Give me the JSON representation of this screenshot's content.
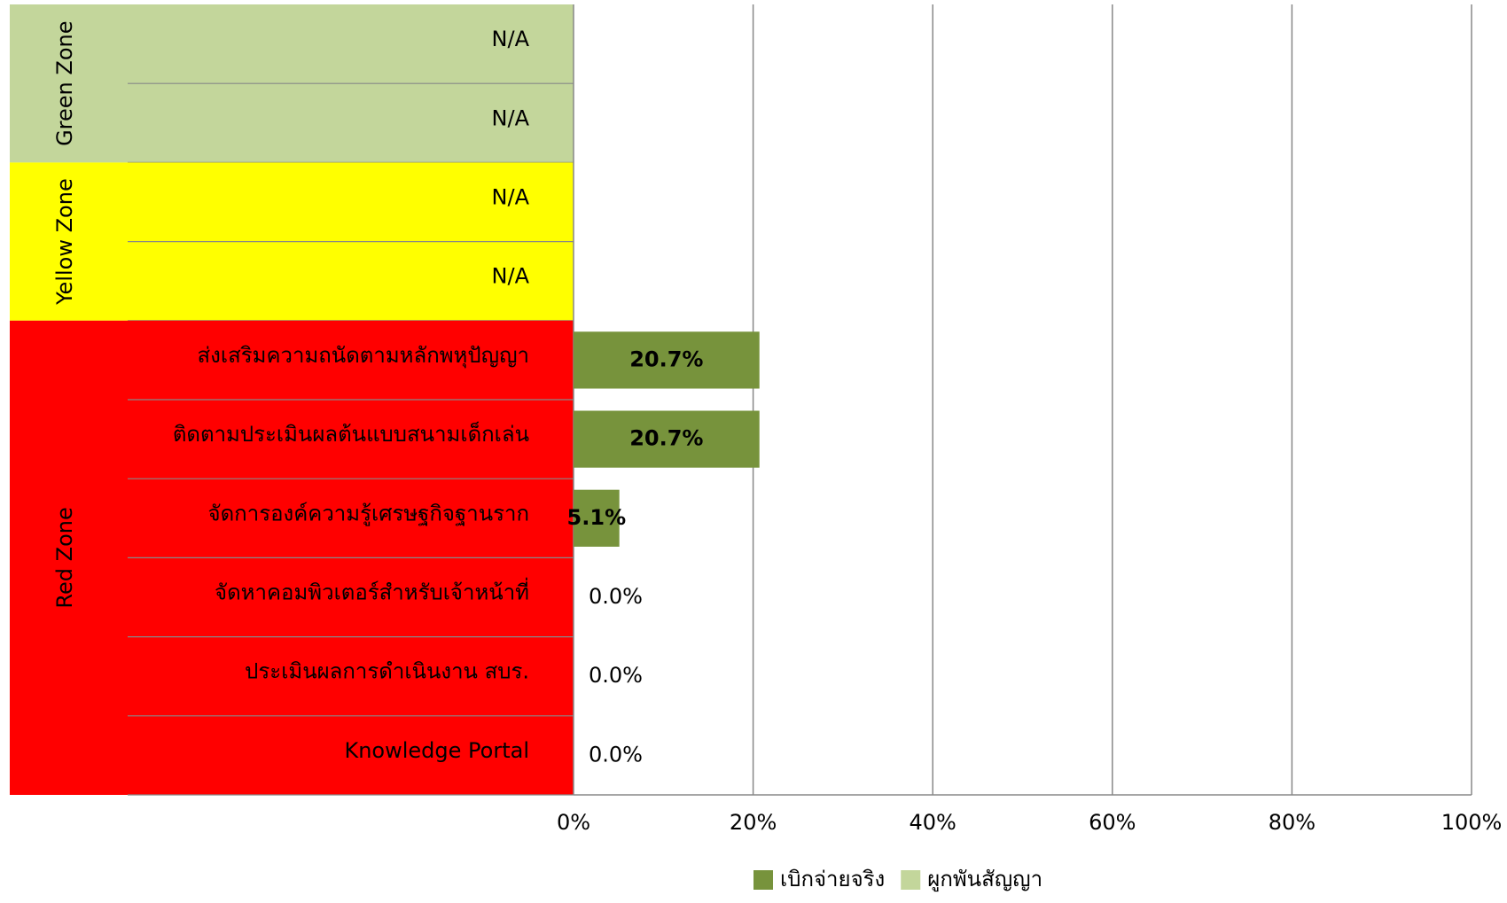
{
  "chart_data": {
    "type": "bar",
    "orientation": "horizontal",
    "groups": [
      {
        "label": "Green Zone",
        "color": "#c3d69b",
        "categories": [
          "N/A",
          "N/A"
        ]
      },
      {
        "label": "Yellow Zone",
        "color": "#ffff00",
        "categories": [
          "N/A",
          "N/A"
        ]
      },
      {
        "label": "Red Zone",
        "color": "#ff0000",
        "categories": [
          "ส่งเสริมความถนัดตามหลักพหุปัญญา",
          "ติดตามประเมินผลต้นแบบสนามเด็กเล่น",
          "จัดการองค์ความรู้เศรษฐกิจฐานราก",
          "จัดหาคอมพิวเตอร์สำหรับเจ้าหน้าที่",
          "ประเมินผลการดำเนินงาน สบร.",
          "Knowledge Portal"
        ]
      }
    ],
    "series": [
      {
        "name": "เบิกจ่ายจริง",
        "color": "#77933c",
        "values": [
          null,
          null,
          null,
          null,
          20.7,
          20.7,
          5.1,
          0,
          0,
          0
        ],
        "value_labels": [
          null,
          null,
          null,
          null,
          "20.7%",
          "20.7%",
          "5.1%",
          "0.0%",
          "0.0%",
          "0.0%"
        ]
      },
      {
        "name": "ผูกพันสัญญา",
        "color": "#c3d69b",
        "values": [
          null,
          null,
          null,
          null,
          null,
          null,
          null,
          null,
          null,
          null
        ]
      }
    ],
    "xlim": [
      0,
      100
    ],
    "xticks": [
      {
        "value": 0,
        "label": "0%"
      },
      {
        "value": 20,
        "label": "20%"
      },
      {
        "value": 40,
        "label": "40%"
      },
      {
        "value": 60,
        "label": "60%"
      },
      {
        "value": 80,
        "label": "80%"
      },
      {
        "value": 100,
        "label": "100%"
      }
    ],
    "grid": true,
    "legend": "bottom"
  }
}
